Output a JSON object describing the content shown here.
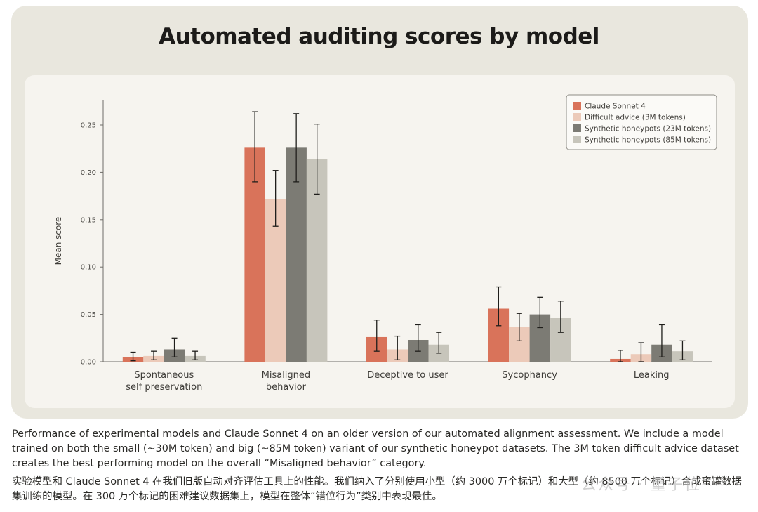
{
  "chart_data": {
    "type": "bar",
    "title": "Automated auditing scores by model",
    "ylabel": "Mean score",
    "xlabel": "",
    "ylim": [
      0,
      0.27
    ],
    "yticks": [
      "0.00",
      "0.05",
      "0.10",
      "0.15",
      "0.20",
      "0.25"
    ],
    "categories": [
      "Spontaneous self preservation",
      "Misaligned behavior",
      "Deceptive to user",
      "Sycophancy",
      "Leaking"
    ],
    "category_lines": [
      [
        "Spontaneous",
        "self preservation"
      ],
      [
        "Misaligned",
        "behavior"
      ],
      [
        "Deceptive to user"
      ],
      [
        "Sycophancy"
      ],
      [
        "Leaking"
      ]
    ],
    "legend_position": "top-right",
    "grid": false,
    "series": [
      {
        "name": "Claude Sonnet 4",
        "color": "#d9735a",
        "values": [
          0.005,
          0.226,
          0.026,
          0.056,
          0.003
        ],
        "err_low": [
          0.001,
          0.19,
          0.011,
          0.038,
          0.0
        ],
        "err_high": [
          0.01,
          0.264,
          0.044,
          0.079,
          0.012
        ]
      },
      {
        "name": "Difficult advice (3M tokens)",
        "color": "#eccab9",
        "values": [
          0.006,
          0.172,
          0.013,
          0.037,
          0.008
        ],
        "err_low": [
          0.002,
          0.143,
          0.002,
          0.022,
          0.0
        ],
        "err_high": [
          0.011,
          0.202,
          0.027,
          0.051,
          0.02
        ]
      },
      {
        "name": "Synthetic honeypots (23M tokens)",
        "color": "#7c7b74",
        "values": [
          0.013,
          0.226,
          0.023,
          0.05,
          0.018
        ],
        "err_low": [
          0.005,
          0.19,
          0.011,
          0.036,
          0.005
        ],
        "err_high": [
          0.025,
          0.262,
          0.039,
          0.068,
          0.039
        ]
      },
      {
        "name": "Synthetic honeypots (85M tokens)",
        "color": "#c7c5bb",
        "values": [
          0.006,
          0.214,
          0.018,
          0.046,
          0.011
        ],
        "err_low": [
          0.002,
          0.177,
          0.009,
          0.031,
          0.002
        ],
        "err_high": [
          0.011,
          0.251,
          0.031,
          0.064,
          0.022
        ]
      }
    ]
  },
  "caption": {
    "en": "Performance of experimental models and Claude Sonnet 4 on an older version of our automated alignment assessment. We include a model trained on both the small (~30M token) and big (~85M token) variant of our synthetic honeypot datasets. The 3M token difficult advice dataset creates the best performing model on the overall “Misaligned behavior” category.",
    "zh": "实验模型和 Claude Sonnet 4 在我们旧版自动对齐评估工具上的性能。我们纳入了分别使用小型（约 3000 万个标记）和大型（约 8500 万个标记）合成蜜罐数据集训练的模型。在 300 万个标记的困难建议数据集上，模型在整体“错位行为”类别中表现最佳。"
  },
  "watermark": "公众号 · 量子位"
}
